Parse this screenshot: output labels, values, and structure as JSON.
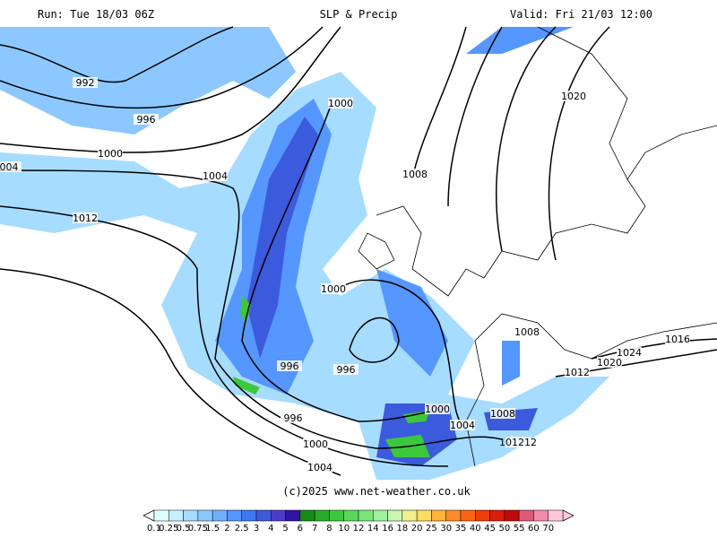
{
  "header": {
    "run": "Run: Tue 18/03 06Z",
    "title": "SLP & Precip",
    "valid": "Valid: Fri 21/03 12:00"
  },
  "isobar_labels": [
    "992",
    "996",
    "1000",
    "004",
    "1004",
    "1012",
    "1000",
    "1008",
    "1000",
    "996",
    "996",
    "996",
    "1000",
    "1004",
    "1000",
    "1004",
    "1008",
    "1008",
    "101212",
    "1012",
    "1020",
    "1024",
    "1016",
    "1020"
  ],
  "copyright": "(c)2025 www.net-weather.co.uk",
  "legend": [
    {
      "label": "0.1",
      "color": "#e0ffff"
    },
    {
      "label": "0.25",
      "color": "#c4f0ff"
    },
    {
      "label": "0.5",
      "color": "#a6dcff"
    },
    {
      "label": "0.75",
      "color": "#8cc8ff"
    },
    {
      "label": "1.5",
      "color": "#6eb0ff"
    },
    {
      "label": "2",
      "color": "#5596ff"
    },
    {
      "label": "2.5",
      "color": "#3c78f0"
    },
    {
      "label": "3",
      "color": "#3c5adc"
    },
    {
      "label": "4",
      "color": "#4b3cc8"
    },
    {
      "label": "5",
      "color": "#3214a0"
    },
    {
      "label": "6",
      "color": "#148c14"
    },
    {
      "label": "7",
      "color": "#28aa28"
    },
    {
      "label": "8",
      "color": "#3cc83c"
    },
    {
      "label": "10",
      "color": "#5ad75a"
    },
    {
      "label": "12",
      "color": "#78e678"
    },
    {
      "label": "14",
      "color": "#a0f0a0"
    },
    {
      "label": "16",
      "color": "#c8f5b4"
    },
    {
      "label": "18",
      "color": "#f0f08c"
    },
    {
      "label": "20",
      "color": "#ffdc64"
    },
    {
      "label": "25",
      "color": "#ffb43c"
    },
    {
      "label": "30",
      "color": "#ff8c28"
    },
    {
      "label": "35",
      "color": "#ff6414"
    },
    {
      "label": "40",
      "color": "#f03c0a"
    },
    {
      "label": "45",
      "color": "#dc1e0a"
    },
    {
      "label": "50",
      "color": "#be0a0a"
    },
    {
      "label": "55",
      "color": "#dc5a78"
    },
    {
      "label": "60",
      "color": "#f08caa"
    },
    {
      "label": "70",
      "color": "#ffc8dc"
    }
  ]
}
